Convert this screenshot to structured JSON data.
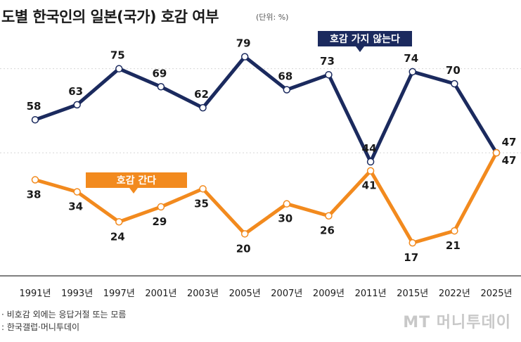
{
  "chart_data": {
    "type": "line",
    "title": "도별 한국인의 일본(국가) 호감 여부",
    "unit": "(단위: %)",
    "categories": [
      "1991년",
      "1993년",
      "1997년",
      "2001년",
      "2003년",
      "2005년",
      "2007년",
      "2009년",
      "2011년",
      "2015년",
      "2022년",
      "2025년"
    ],
    "series": [
      {
        "name": "호감 가지 않는다",
        "color": "#1b2a5e",
        "values": [
          58,
          63,
          75,
          69,
          62,
          79,
          68,
          73,
          44,
          74,
          70,
          47
        ]
      },
      {
        "name": "호감 간다",
        "color": "#f28a1e",
        "values": [
          38,
          34,
          24,
          29,
          35,
          20,
          30,
          26,
          41,
          17,
          21,
          47
        ]
      }
    ],
    "highlight_color": "#b8313b",
    "ylim": [
      10,
      85
    ],
    "grid": true
  },
  "footnote": {
    "line1": "· 비호감 외에는 응답거절 또는 모름",
    "line2": ": 한국갤럽·머니투데이"
  },
  "watermark": "MT 머니투데이"
}
